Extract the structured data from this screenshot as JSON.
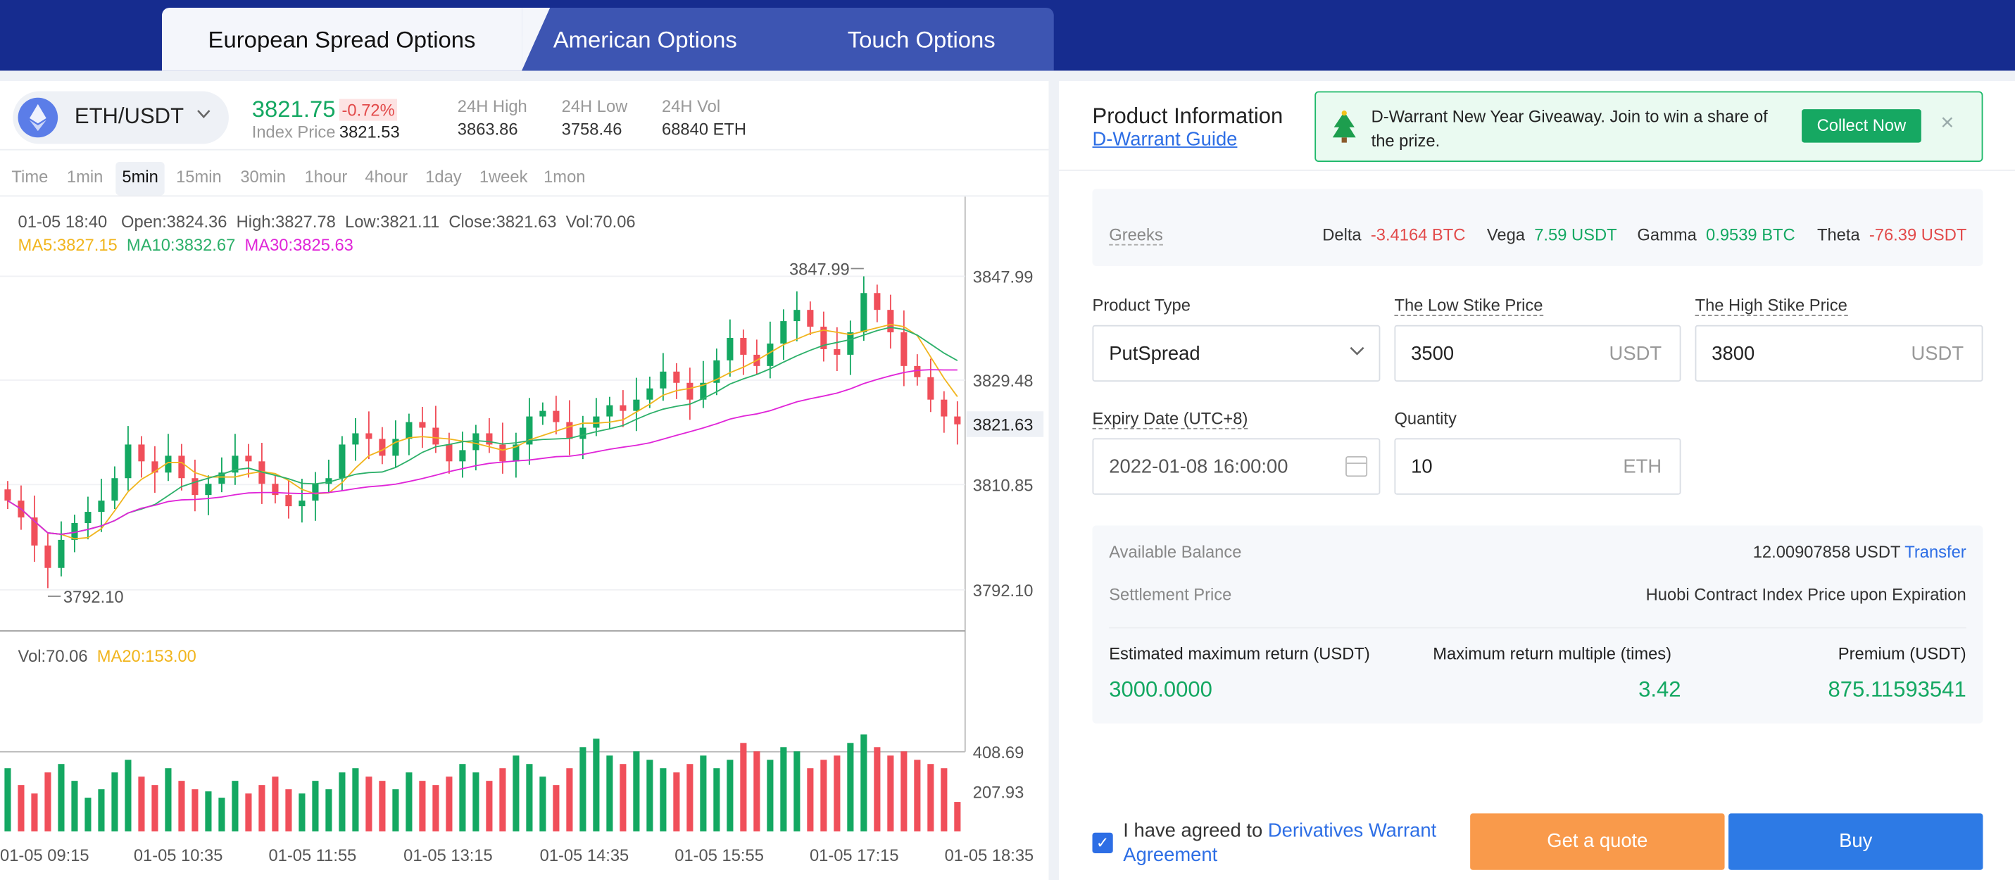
{
  "tabs": [
    "European Spread Options",
    "American Options",
    "Touch Options"
  ],
  "pair": {
    "label": "ETH/USDT",
    "price": "3821.75",
    "change": "-0.72%",
    "index_label": "Index Price",
    "index_value": "3821.53"
  },
  "stats": [
    {
      "k": "24H High",
      "v": "3863.86"
    },
    {
      "k": "24H Low",
      "v": "3758.46"
    },
    {
      "k": "24H Vol",
      "v": "68840 ETH"
    }
  ],
  "timeframes": [
    "Time",
    "1min",
    "5min",
    "15min",
    "30min",
    "1hour",
    "4hour",
    "1day",
    "1week",
    "1mon"
  ],
  "chart_info": {
    "time": "01-05 18:40",
    "open": "Open:3824.36",
    "high": "High:3827.78",
    "low": "Low:3821.11",
    "close": "Close:3821.63",
    "vol": "Vol:70.06"
  },
  "ma": {
    "ma5": "MA5:3827.15",
    "ma10": "MA10:3832.67",
    "ma30": "MA30:3825.63",
    "vol": "Vol:70.06",
    "ma20": "MA20:153.00"
  },
  "colors": {
    "up": "#14a862",
    "down": "#f04f5a",
    "ma5": "#f1b51e",
    "ma10": "#2db06a",
    "ma30": "#e025d8",
    "brand": "#162c8f"
  },
  "chart_data": {
    "type": "candlestick",
    "price_ticks": [
      "3847.99",
      "3829.48",
      "3810.85",
      "3792.10"
    ],
    "current_price": "3821.63",
    "max_label": "3847.99",
    "min_label": "3792.10",
    "vol_ticks": [
      "408.69",
      "207.93"
    ],
    "x_labels": [
      "01-05 09:15",
      "01-05 10:35",
      "01-05 11:55",
      "01-05 13:15",
      "01-05 14:35",
      "01-05 15:55",
      "01-05 17:15",
      "01-05 18:35"
    ],
    "close": [
      3808,
      3805,
      3800,
      3796,
      3801,
      3804,
      3806,
      3808,
      3812,
      3818,
      3815,
      3813,
      3816,
      3812,
      3809,
      3811,
      3813,
      3816,
      3815,
      3811,
      3809,
      3807,
      3808,
      3811,
      3812,
      3818,
      3820,
      3819,
      3816,
      3819,
      3822,
      3821,
      3818,
      3815,
      3817,
      3820,
      3818,
      3815,
      3818,
      3823,
      3824,
      3822,
      3819,
      3821,
      3823,
      3825,
      3824,
      3826,
      3828,
      3831,
      3829,
      3826,
      3829,
      3833,
      3837,
      3834,
      3832,
      3836,
      3840,
      3842,
      3839,
      3835,
      3834,
      3838,
      3845,
      3842,
      3838,
      3832,
      3830,
      3826,
      3823,
      3821.6
    ],
    "volume": [
      150,
      110,
      90,
      140,
      160,
      120,
      80,
      100,
      140,
      170,
      130,
      110,
      150,
      120,
      100,
      95,
      80,
      120,
      90,
      110,
      130,
      100,
      90,
      120,
      100,
      140,
      150,
      130,
      120,
      100,
      140,
      120,
      110,
      130,
      160,
      140,
      120,
      150,
      180,
      160,
      130,
      110,
      150,
      200,
      220,
      180,
      160,
      190,
      170,
      150,
      140,
      160,
      180,
      150,
      170,
      210,
      190,
      170,
      200,
      190,
      150,
      170,
      180,
      210,
      230,
      200,
      180,
      190,
      170,
      160,
      150,
      70
    ]
  },
  "product": {
    "title": "Product Information",
    "guide": "D-Warrant Guide"
  },
  "banner": {
    "text": "D-Warrant New Year Giveaway. Join to win a share of the prize.",
    "button": "Collect Now",
    "close": "×"
  },
  "greeks": {
    "label": "Greeks",
    "items": [
      {
        "k": "Delta",
        "v": "-3.4164 BTC",
        "c": "red"
      },
      {
        "k": "Vega",
        "v": "7.59 USDT",
        "c": "grn"
      },
      {
        "k": "Gamma",
        "v": "0.9539 BTC",
        "c": "grn"
      },
      {
        "k": "Theta",
        "v": "-76.39 USDT",
        "c": "red"
      }
    ]
  },
  "form": {
    "product_type_label": "Product Type",
    "product_type": "PutSpread",
    "low_label": "The Low Stike Price",
    "low": "3500",
    "low_unit": "USDT",
    "high_label": "The High Stike Price",
    "high": "3800",
    "high_unit": "USDT",
    "expiry_label": "Expiry Date (UTC+8)",
    "expiry": "2022-01-08 16:00:00",
    "qty_label": "Quantity",
    "qty": "10",
    "qty_unit": "ETH"
  },
  "summary": {
    "balance_label": "Available Balance",
    "balance": "12.00907858 USDT",
    "transfer": "Transfer",
    "settle_label": "Settlement Price",
    "settle": "Huobi Contract Index Price upon Expiration",
    "est_label": "Estimated maximum return (USDT)",
    "est": "3000.0000",
    "mult_label": "Maximum return multiple (times)",
    "mult": "3.42",
    "prem_label": "Premium (USDT)",
    "prem": "875.11593541"
  },
  "agree": {
    "text": "I have agreed to",
    "link": "Derivatives Warrant Agreement"
  },
  "buttons": {
    "quote": "Get a quote",
    "buy": "Buy"
  }
}
